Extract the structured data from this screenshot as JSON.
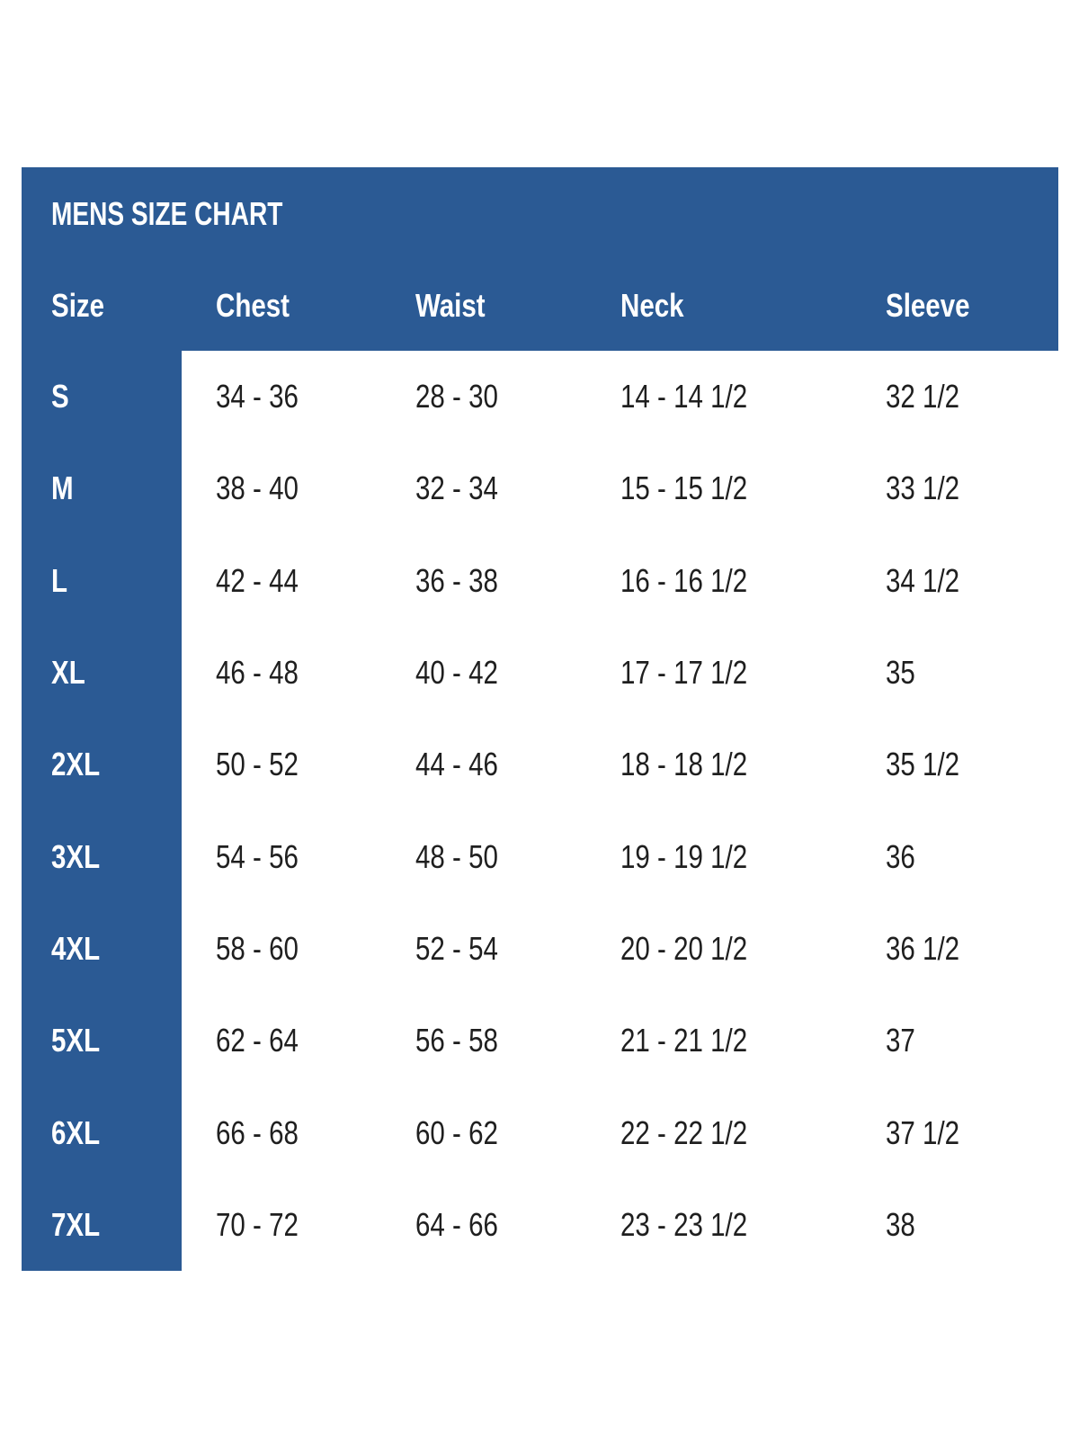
{
  "chart_data": {
    "type": "table",
    "title": "MENS SIZE CHART",
    "columns": [
      "Size",
      "Chest",
      "Waist",
      "Neck",
      "Sleeve"
    ],
    "rows": [
      [
        "S",
        "34 - 36",
        "28 - 30",
        "14 - 14 1/2",
        "32 1/2"
      ],
      [
        "M",
        "38 - 40",
        "32 - 34",
        "15 - 15 1/2",
        "33 1/2"
      ],
      [
        "L",
        "42 - 44",
        "36 - 38",
        "16 - 16 1/2",
        "34 1/2"
      ],
      [
        "XL",
        "46 - 48",
        "40 - 42",
        "17 - 17 1/2",
        "35"
      ],
      [
        "2XL",
        "50 - 52",
        "44 - 46",
        "18 - 18 1/2",
        "35 1/2"
      ],
      [
        "3XL",
        "54 - 56",
        "48 - 50",
        "19 - 19 1/2",
        "36"
      ],
      [
        "4XL",
        "58 - 60",
        "52 - 54",
        "20 - 20 1/2",
        "36 1/2"
      ],
      [
        "5XL",
        "62 - 64",
        "56 - 58",
        "21 - 21 1/2",
        "37"
      ],
      [
        "6XL",
        "66 - 68",
        "60 - 62",
        "22 - 22 1/2",
        "37 1/2"
      ],
      [
        "7XL",
        "70 - 72",
        "64 - 66",
        "23 - 23 1/2",
        "38"
      ]
    ],
    "layout": {
      "legend": "none",
      "grid": "off"
    }
  },
  "colors": {
    "panel_blue": "#2b5a94",
    "background": "#ffffff",
    "header_text": "#ffffff",
    "body_text": "#1f1f1f"
  }
}
